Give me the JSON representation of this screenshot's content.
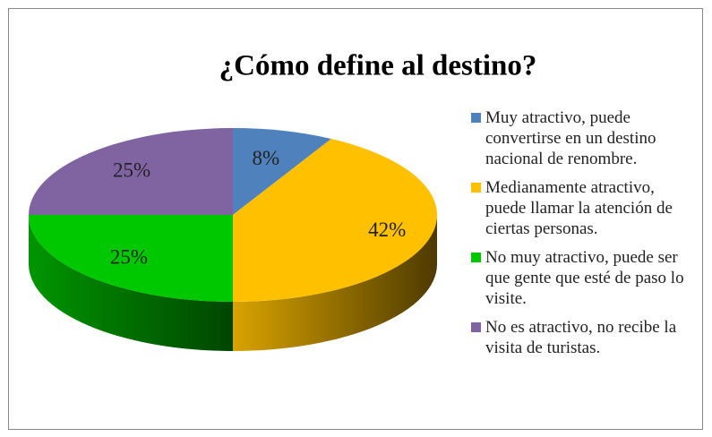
{
  "chart_data": {
    "type": "pie",
    "title": "¿Cómo define al destino?",
    "categories": [
      "Muy atractivo, puede convertirse en un destino nacional de renombre.",
      "Medianamente atractivo, puede llamar la atención de ciertas personas.",
      "No muy atractivo, puede ser que gente que esté de paso lo visite.",
      "No es atractivo, no recibe la visita de turistas."
    ],
    "values": [
      8,
      42,
      25,
      25
    ],
    "value_labels": [
      "8%",
      "42%",
      "25%",
      "25%"
    ],
    "colors": [
      "#4f81bd",
      "#ffc000",
      "#00c800",
      "#8064a2"
    ],
    "legend": "right"
  }
}
